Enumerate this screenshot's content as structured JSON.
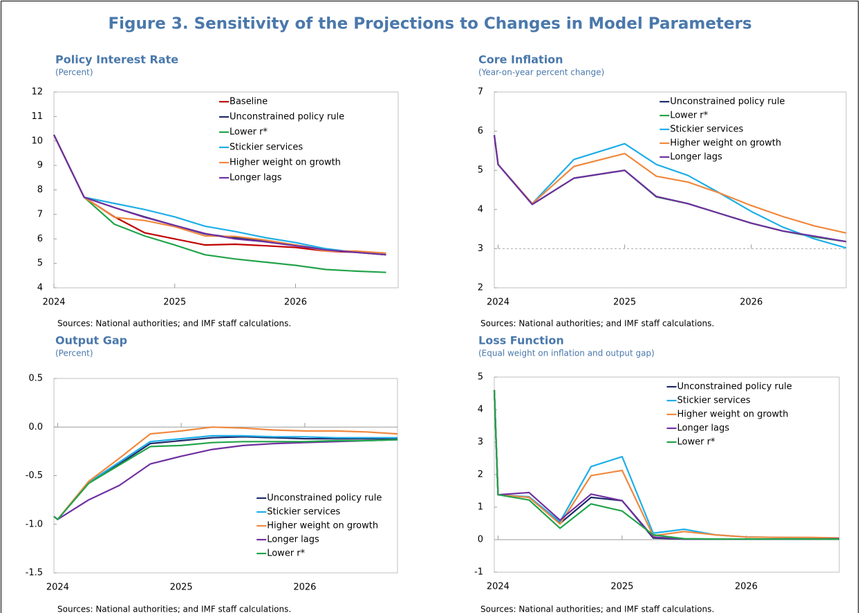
{
  "title": "Figure 3. Sensitivity of the Projections to Changes in Model Parameters",
  "chart_data": [
    {
      "type": "line",
      "title": "Policy Interest Rate",
      "subtitle": "(Percent)",
      "note": "Sources: National authorities; and IMF staff calculations.",
      "x": [
        2024,
        2024.25,
        2024.5,
        2024.75,
        2025,
        2025.25,
        2025.5,
        2025.75,
        2026,
        2026.25,
        2026.5,
        2026.75
      ],
      "xlim": [
        2024,
        2026.85
      ],
      "xticks": [
        2024,
        2025,
        2026
      ],
      "ylim": [
        4,
        12
      ],
      "yticks": [
        4,
        5,
        6,
        7,
        8,
        9,
        10,
        11,
        12
      ],
      "legend": "upper right",
      "series": [
        {
          "name": "Baseline",
          "color": "#c00000",
          "values": [
            10.25,
            7.7,
            6.9,
            6.25,
            6.0,
            5.75,
            5.78,
            5.72,
            5.65,
            5.5,
            5.45,
            5.35
          ]
        },
        {
          "name": "Unconstrained policy rule",
          "color": "#1f2a6b",
          "values": [
            10.25,
            7.7,
            7.28,
            6.9,
            6.55,
            6.2,
            6.05,
            5.9,
            5.75,
            5.55,
            5.45,
            5.35
          ]
        },
        {
          "name": "Lower r*",
          "color": "#22a34a",
          "values": [
            10.25,
            7.7,
            6.6,
            6.12,
            5.75,
            5.35,
            5.18,
            5.05,
            4.92,
            4.75,
            4.68,
            4.63
          ]
        },
        {
          "name": "Stickier services",
          "color": "#1eaee8",
          "values": [
            10.25,
            7.7,
            7.45,
            7.2,
            6.9,
            6.52,
            6.3,
            6.05,
            5.85,
            5.6,
            5.45,
            5.38
          ]
        },
        {
          "name": "Higher weight on growth",
          "color": "#f0883e",
          "values": [
            10.25,
            7.7,
            6.88,
            6.75,
            6.5,
            6.12,
            6.1,
            5.95,
            5.75,
            5.5,
            5.5,
            5.42
          ]
        },
        {
          "name": "Longer lags",
          "color": "#7030a0",
          "values": [
            10.25,
            7.7,
            7.28,
            6.88,
            6.55,
            6.22,
            6.0,
            5.88,
            5.72,
            5.55,
            5.45,
            5.35
          ]
        }
      ]
    },
    {
      "type": "line",
      "title": "Core Inflation",
      "subtitle": "(Year-on-year percent change)",
      "note": "Sources: National authorities; and IMF staff calculations.",
      "x": [
        2023.97,
        2024,
        2024.27,
        2024.6,
        2025,
        2025.25,
        2025.5,
        2025.75,
        2026,
        2026.25,
        2026.5,
        2026.75
      ],
      "xlim": [
        2023.97,
        2026.75
      ],
      "xticks": [
        2024,
        2025,
        2026
      ],
      "ylim": [
        2,
        7
      ],
      "yticks": [
        2,
        3,
        4,
        5,
        6,
        7
      ],
      "reference_line": 3,
      "reference_line_style": "dashed",
      "legend": "upper right",
      "series": [
        {
          "name": "Unconstrained policy rule",
          "color": "#1f2a6b",
          "values": [
            5.9,
            5.15,
            4.13,
            4.8,
            5.0,
            4.33,
            4.15,
            3.9,
            3.65,
            3.45,
            3.3,
            3.18
          ]
        },
        {
          "name": "Lower r*",
          "color": "#22a34a",
          "values": [
            5.9,
            5.15,
            4.13,
            4.8,
            5.0,
            4.32,
            4.15,
            3.9,
            3.65,
            3.45,
            3.3,
            3.18
          ]
        },
        {
          "name": "Stickier services",
          "color": "#1eaee8",
          "values": [
            5.9,
            5.15,
            4.15,
            5.28,
            5.68,
            5.15,
            4.87,
            4.42,
            3.95,
            3.55,
            3.25,
            3.02
          ]
        },
        {
          "name": "Higher weight on growth",
          "color": "#f0883e",
          "values": [
            5.9,
            5.15,
            4.15,
            5.1,
            5.43,
            4.85,
            4.7,
            4.42,
            4.1,
            3.82,
            3.58,
            3.4
          ]
        },
        {
          "name": "Longer lags",
          "color": "#7030a0",
          "values": [
            5.9,
            5.15,
            4.13,
            4.8,
            5.0,
            4.33,
            4.15,
            3.9,
            3.65,
            3.45,
            3.32,
            3.18
          ]
        }
      ]
    },
    {
      "type": "line",
      "title": "Output Gap",
      "subtitle": "(Percent)",
      "note": "Sources: National authorities; and IMF staff calculations.",
      "x": [
        2023.97,
        2024,
        2024.25,
        2024.5,
        2024.75,
        2025,
        2025.25,
        2025.5,
        2025.75,
        2026,
        2026.25,
        2026.5,
        2026.75
      ],
      "xlim": [
        2023.97,
        2026.75
      ],
      "xticks": [
        2024,
        2025,
        2026
      ],
      "ylim": [
        -1.5,
        0.5
      ],
      "yticks": [
        -1.5,
        {
          "value": -1,
          "label": "-1.0"
        },
        -0.5,
        {
          "value": 0,
          "label": "0.0"
        },
        0.5
      ],
      "reference_line": 0,
      "reference_line_style": "solid",
      "legend": "lower right",
      "series": [
        {
          "name": "Unconstrained policy rule",
          "color": "#1f2a6b",
          "values": [
            -0.92,
            -0.95,
            -0.58,
            -0.38,
            -0.17,
            -0.14,
            -0.11,
            -0.1,
            -0.11,
            -0.12,
            -0.12,
            -0.12,
            -0.12
          ]
        },
        {
          "name": "Stickier services",
          "color": "#1eaee8",
          "values": [
            -0.92,
            -0.95,
            -0.57,
            -0.36,
            -0.15,
            -0.12,
            -0.09,
            -0.09,
            -0.1,
            -0.1,
            -0.11,
            -0.11,
            -0.11
          ]
        },
        {
          "name": "Higher weight on growth",
          "color": "#f0883e",
          "values": [
            -0.92,
            -0.95,
            -0.56,
            -0.32,
            -0.07,
            -0.04,
            0.0,
            -0.01,
            -0.03,
            -0.04,
            -0.04,
            -0.05,
            -0.07
          ]
        },
        {
          "name": "Longer lags",
          "color": "#7030a0",
          "values": [
            -0.92,
            -0.95,
            -0.75,
            -0.6,
            -0.38,
            -0.3,
            -0.23,
            -0.19,
            -0.17,
            -0.16,
            -0.15,
            -0.14,
            -0.13
          ]
        },
        {
          "name": "Lower r*",
          "color": "#22a34a",
          "values": [
            -0.92,
            -0.95,
            -0.58,
            -0.39,
            -0.2,
            -0.19,
            -0.16,
            -0.15,
            -0.15,
            -0.15,
            -0.14,
            -0.14,
            -0.13
          ]
        }
      ]
    },
    {
      "type": "line",
      "title": "Loss Function",
      "subtitle": "(Equal weight on inflation and output gap)",
      "note": "Sources: National authorities; and IMF staff calculations.",
      "x": [
        2023.97,
        2024,
        2024.25,
        2024.5,
        2024.75,
        2025,
        2025.25,
        2025.5,
        2025.75,
        2026,
        2026.25,
        2026.5,
        2026.75
      ],
      "xlim": [
        2023.97,
        2026.75
      ],
      "xticks": [
        2024,
        2025,
        2026
      ],
      "ylim": [
        -1,
        5
      ],
      "yticks": [
        -1,
        0,
        1,
        2,
        3,
        4,
        5
      ],
      "reference_line": 0,
      "reference_line_style": "solid",
      "legend": "upper right",
      "series": [
        {
          "name": "Unconstrained policy rule",
          "color": "#1f2a6b",
          "values": [
            4.6,
            1.38,
            1.3,
            0.5,
            1.3,
            1.2,
            0.05,
            0.02,
            0.02,
            0.02,
            0.02,
            0.02,
            0.02
          ]
        },
        {
          "name": "Stickier services",
          "color": "#1eaee8",
          "values": [
            4.6,
            1.38,
            1.32,
            0.55,
            2.25,
            2.55,
            0.2,
            0.32,
            0.15,
            0.08,
            0.07,
            0.06,
            0.05
          ]
        },
        {
          "name": "Higher weight on growth",
          "color": "#f0883e",
          "values": [
            4.6,
            1.38,
            1.3,
            0.48,
            1.97,
            2.13,
            0.12,
            0.25,
            0.15,
            0.08,
            0.07,
            0.07,
            0.05
          ]
        },
        {
          "name": "Longer lags",
          "color": "#7030a0",
          "values": [
            4.6,
            1.38,
            1.45,
            0.6,
            1.4,
            1.2,
            0.08,
            0.02,
            0.02,
            0.02,
            0.02,
            0.02,
            0.03
          ]
        },
        {
          "name": "Lower r*",
          "color": "#22a34a",
          "values": [
            4.6,
            1.38,
            1.22,
            0.35,
            1.1,
            0.88,
            0.15,
            0.03,
            0.02,
            0.02,
            0.02,
            0.02,
            0.02
          ]
        }
      ]
    }
  ]
}
